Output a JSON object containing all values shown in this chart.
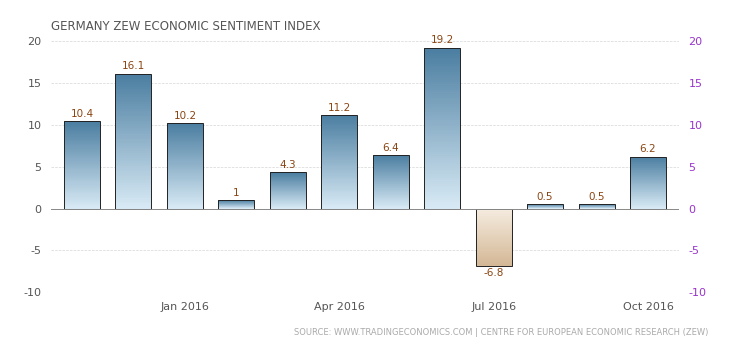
{
  "title": "GERMANY ZEW ECONOMIC SENTIMENT INDEX",
  "source": "SOURCE: WWW.TRADINGECONOMICS.COM | CENTRE FOR EUROPEAN ECONOMIC RESEARCH (ZEW)",
  "x_tick_labels": [
    "Jan 2016",
    "Apr 2016",
    "Jul 2016",
    "Oct 2016"
  ],
  "x_tick_positions": [
    2,
    5,
    8,
    11
  ],
  "values": [
    10.4,
    16.1,
    10.2,
    1.0,
    4.3,
    11.2,
    6.4,
    19.2,
    -6.8,
    0.5,
    0.5,
    6.2
  ],
  "value_labels": [
    "10.4",
    "16.1",
    "10.2",
    "1",
    "4.3",
    "11.2",
    "6.4",
    "19.2",
    "-6.8",
    "0.5",
    "0.5",
    "6.2"
  ],
  "ylim": [
    -10,
    20
  ],
  "yticks": [
    -10,
    -5,
    0,
    5,
    10,
    15,
    20
  ],
  "bar_top_color": "#4a7da0",
  "bar_bot_color": "#d8eaf5",
  "neg_top_color": "#d4b896",
  "neg_bot_color": "#f5ece0",
  "bar_edge_color": "#222222",
  "background_color": "#ffffff",
  "grid_color": "#cccccc",
  "title_color": "#555555",
  "label_color": "#8b4513",
  "tick_color_left": "#555555",
  "tick_color_right": "#9933cc",
  "source_color": "#aaaaaa",
  "title_fontsize": 8.5,
  "label_fontsize": 7.5,
  "source_fontsize": 6,
  "bar_width": 0.7,
  "n_grad": 80
}
